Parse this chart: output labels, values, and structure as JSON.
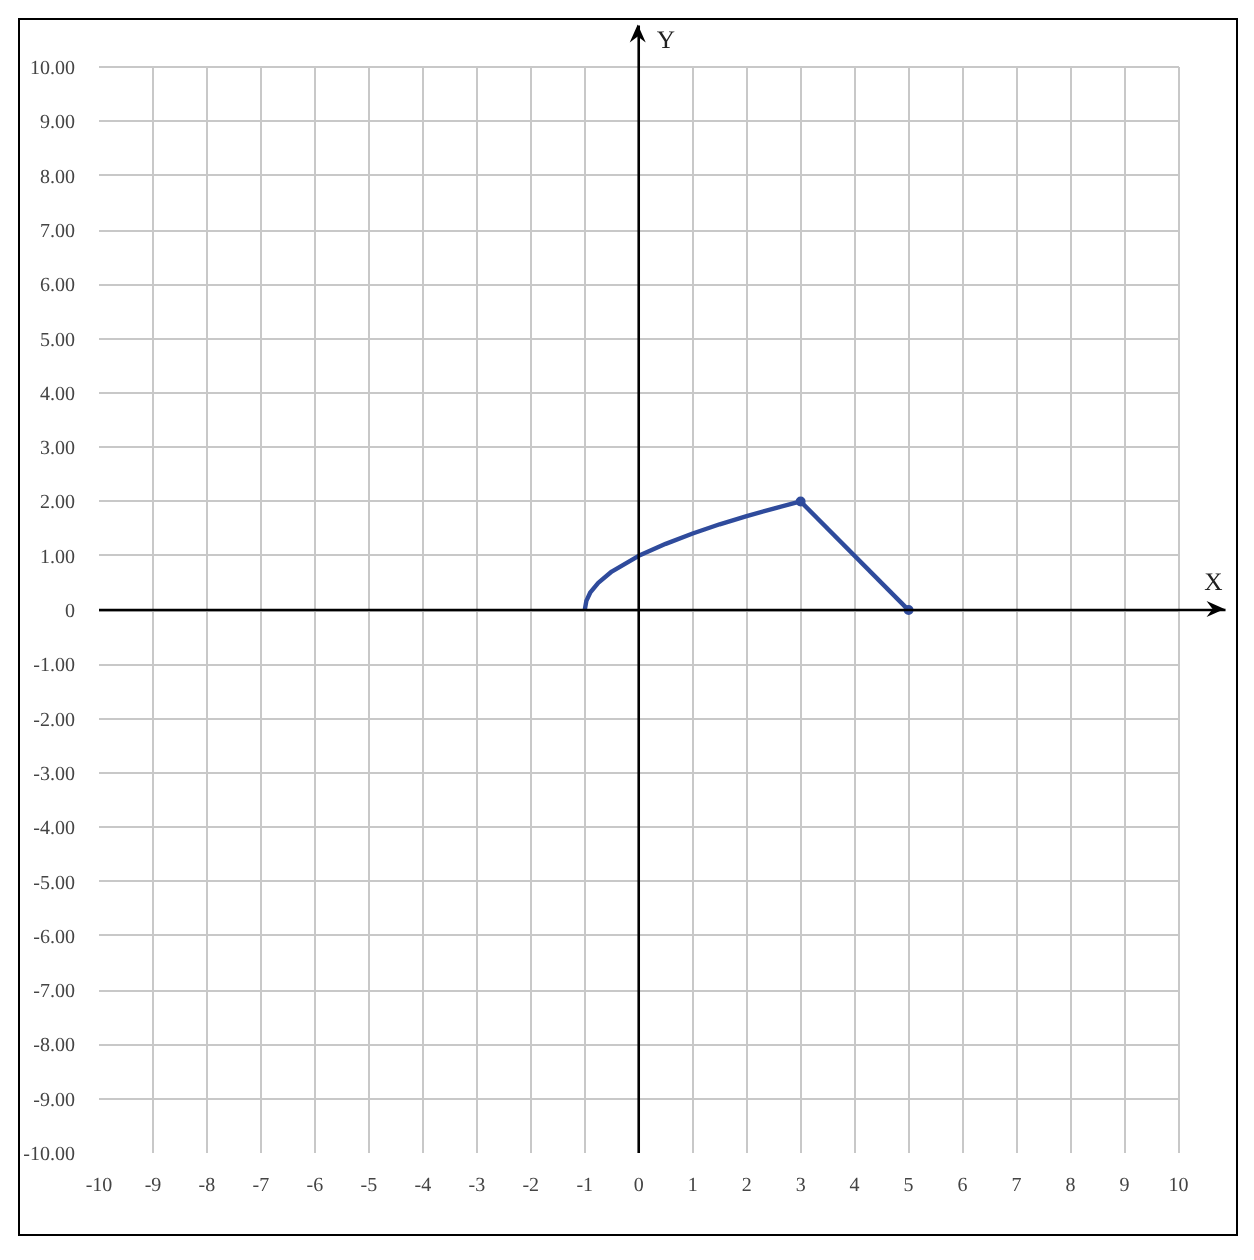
{
  "chart_data": {
    "type": "line",
    "xlabel": "X",
    "ylabel": "Y",
    "xlim": [
      -10,
      10
    ],
    "ylim": [
      -10,
      10
    ],
    "xticks": [
      -10,
      -9,
      -8,
      -7,
      -6,
      -5,
      -4,
      -3,
      -2,
      -1,
      0,
      1,
      2,
      3,
      4,
      5,
      6,
      7,
      8,
      9,
      10
    ],
    "yticks": [
      {
        "value": -10,
        "label": "-10.00"
      },
      {
        "value": -9,
        "label": "-9.00"
      },
      {
        "value": -8,
        "label": "-8.00"
      },
      {
        "value": -7,
        "label": "-7.00"
      },
      {
        "value": -6,
        "label": "-6.00"
      },
      {
        "value": -5,
        "label": "-5.00"
      },
      {
        "value": -4,
        "label": "-4.00"
      },
      {
        "value": -3,
        "label": "-3.00"
      },
      {
        "value": -2,
        "label": "-2.00"
      },
      {
        "value": -1,
        "label": "-1.00"
      },
      0,
      {
        "value": 1,
        "label": "1.00"
      },
      {
        "value": 2,
        "label": "2.00"
      },
      {
        "value": 3,
        "label": "3.00"
      },
      {
        "value": 4,
        "label": "4.00"
      },
      {
        "value": 5,
        "label": "5.00"
      },
      {
        "value": 6,
        "label": "6.00"
      },
      {
        "value": 7,
        "label": "7.00"
      },
      {
        "value": 8,
        "label": "8.00"
      },
      {
        "value": 9,
        "label": "9.00"
      },
      {
        "value": 10,
        "label": "10.00"
      }
    ],
    "grid": true,
    "marker": "none",
    "line_style": "solid",
    "series": [
      {
        "color": "#2f4b9c",
        "x": [
          -1,
          -0.97,
          -0.9,
          -0.75,
          -0.5,
          0,
          0.5,
          1,
          1.5,
          2,
          2.5,
          3
        ],
        "values": [
          0,
          0.17,
          0.32,
          0.5,
          0.71,
          1,
          1.22,
          1.41,
          1.58,
          1.73,
          1.87,
          2
        ]
      },
      {
        "color": "#2f4b9c",
        "x": [
          3,
          5
        ],
        "values": [
          2,
          0
        ],
        "marker": "circle"
      }
    ]
  }
}
